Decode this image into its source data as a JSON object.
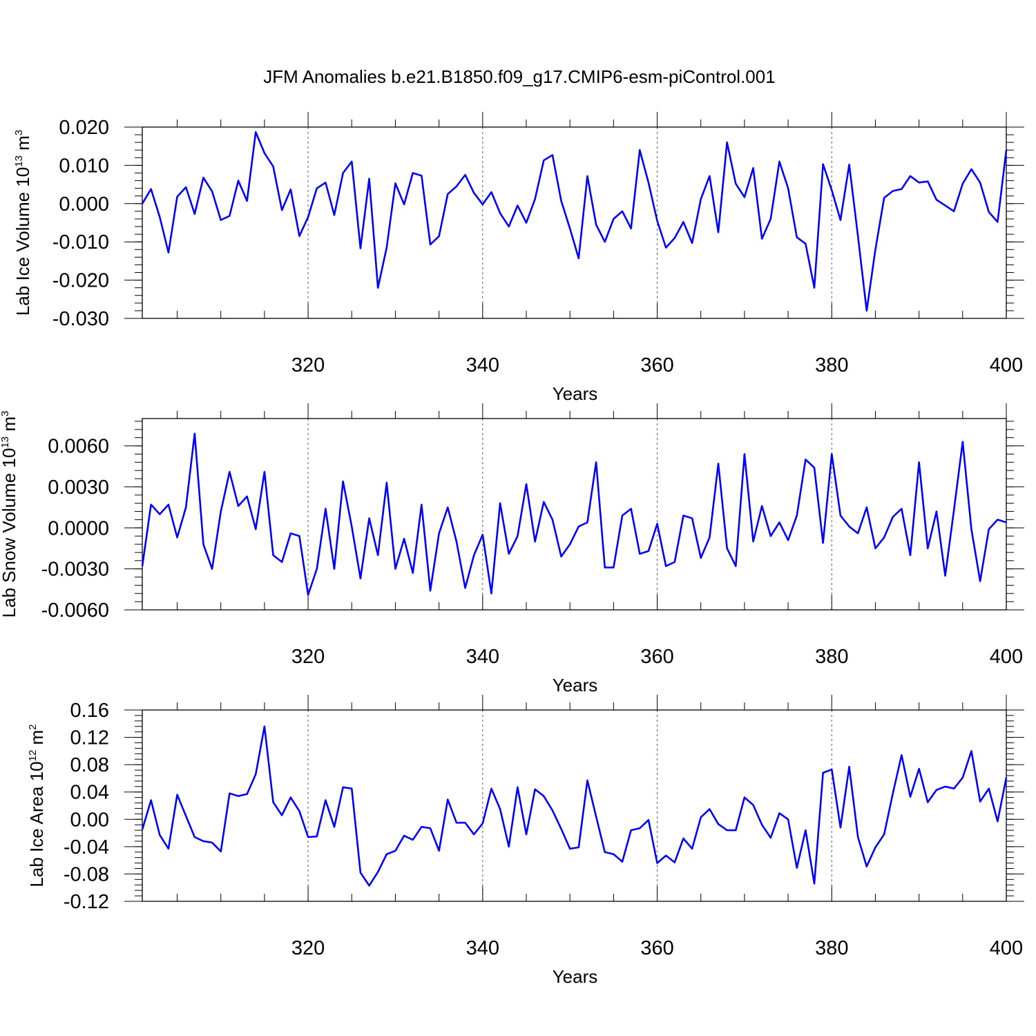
{
  "chart_data": {
    "title": "JFM Anomalies b.e21.B1850.f09_g17.CMIP6-esm-piControl.001",
    "type": "line",
    "series_color": "#0000ff",
    "panels": [
      {
        "type": "line",
        "ylabel_main": "Lab Ice Volume 10",
        "ylabel_exp": "13",
        "ylabel_unit": " m",
        "ylabel_unit_exp": "3",
        "xlabel": "Years",
        "xlim": [
          301,
          400
        ],
        "ylim": [
          -0.03,
          0.02
        ],
        "yticks": [
          0.02,
          0.01,
          0.0,
          -0.01,
          -0.02,
          -0.03
        ],
        "ytick_labels": [
          "0.020",
          "0.010",
          "0.000",
          "-0.010",
          "-0.020",
          "-0.030"
        ],
        "yminor": 0.002,
        "xticks": [
          320,
          340,
          360,
          380,
          400
        ],
        "xtick_labels": [
          "320",
          "340",
          "360",
          "380",
          "400"
        ],
        "grid_x": [
          320,
          340,
          360,
          380
        ],
        "x_start": 301,
        "values": [
          0.0,
          0.0038,
          -0.0035,
          -0.0128,
          0.0018,
          0.0043,
          -0.0027,
          0.0068,
          0.0032,
          -0.0043,
          -0.0032,
          0.006,
          0.0007,
          0.0187,
          0.0132,
          0.0097,
          -0.0017,
          0.0037,
          -0.0085,
          -0.0035,
          0.004,
          0.0055,
          -0.003,
          0.008,
          0.011,
          -0.0117,
          0.0065,
          -0.022,
          -0.0115,
          0.0053,
          -0.0002,
          0.008,
          0.0073,
          -0.0107,
          -0.0085,
          0.0025,
          0.0045,
          0.0075,
          0.0028,
          -0.0002,
          0.003,
          -0.0025,
          -0.006,
          -0.0005,
          -0.005,
          0.0012,
          0.0113,
          0.0127,
          0.0007,
          -0.0065,
          -0.0143,
          0.0072,
          -0.0055,
          -0.01,
          -0.004,
          -0.002,
          -0.0065,
          0.014,
          0.0055,
          -0.0045,
          -0.0115,
          -0.009,
          -0.0048,
          -0.0103,
          0.0012,
          0.0072,
          -0.0075,
          0.016,
          0.0052,
          0.0017,
          0.0093,
          -0.0092,
          -0.004,
          0.011,
          0.004,
          -0.0088,
          -0.0105,
          -0.022,
          0.0103,
          0.0035,
          -0.0043,
          0.0102,
          -0.0085,
          -0.028,
          -0.012,
          0.0015,
          0.0033,
          0.0038,
          0.0072,
          0.0055,
          0.0058,
          0.001,
          -0.0005,
          -0.002,
          0.0052,
          0.009,
          0.0055,
          -0.0022,
          -0.0048,
          0.014
        ]
      },
      {
        "type": "line",
        "ylabel_main": "Lab Snow Volume 10",
        "ylabel_exp": "13",
        "ylabel_unit": " m",
        "ylabel_unit_exp": "3",
        "xlabel": "Years",
        "xlim": [
          301,
          400
        ],
        "ylim": [
          -0.006,
          0.008
        ],
        "yticks": [
          0.006,
          0.003,
          0.0,
          -0.003,
          -0.006
        ],
        "ytick_labels": [
          "0.0060",
          "0.0030",
          "0.0000",
          "-0.0030",
          "-0.0060"
        ],
        "yminor": 0.0006,
        "xticks": [
          320,
          340,
          360,
          380,
          400
        ],
        "xtick_labels": [
          "320",
          "340",
          "360",
          "380",
          "400"
        ],
        "grid_x": [
          320,
          340,
          360,
          380
        ],
        "x_start": 301,
        "values": [
          -0.0028,
          0.0017,
          0.001,
          0.0017,
          -0.0007,
          0.0015,
          0.0069,
          -0.0012,
          -0.003,
          0.0012,
          0.0041,
          0.0016,
          0.0023,
          -0.0001,
          0.0041,
          -0.002,
          -0.0025,
          -0.0004,
          -0.0006,
          -0.0049,
          -0.003,
          0.0014,
          -0.003,
          0.0034,
          0.0001,
          -0.0037,
          0.0007,
          -0.002,
          0.0033,
          -0.003,
          -0.0008,
          -0.0033,
          0.0017,
          -0.0046,
          -0.0004,
          0.0015,
          -0.001,
          -0.0044,
          -0.002,
          -0.0005,
          -0.0048,
          0.0018,
          -0.0019,
          -0.0006,
          0.0032,
          -0.001,
          0.0019,
          0.0006,
          -0.0021,
          -0.0012,
          0.0001,
          0.0004,
          0.0048,
          -0.0029,
          -0.0029,
          0.0009,
          0.0014,
          -0.0019,
          -0.0017,
          0.0003,
          -0.0028,
          -0.0025,
          0.0009,
          0.0007,
          -0.0022,
          -0.0007,
          0.0047,
          -0.0015,
          -0.0028,
          0.0054,
          -0.001,
          0.0016,
          -0.0006,
          0.0004,
          -0.0009,
          0.0009,
          0.005,
          0.0044,
          -0.0011,
          0.0054,
          0.0009,
          0.0001,
          -0.0004,
          0.0015,
          -0.0015,
          -0.0007,
          0.0008,
          0.0014,
          -0.002,
          0.0048,
          -0.0015,
          0.0012,
          -0.0035,
          0.0013,
          0.0063,
          -0.0001,
          -0.0039,
          -0.0001,
          0.0006,
          0.0004
        ]
      },
      {
        "type": "line",
        "ylabel_main": "Lab Ice Area 10",
        "ylabel_exp": "12",
        "ylabel_unit": " m",
        "ylabel_unit_exp": "2",
        "xlabel": "Years",
        "xlim": [
          301,
          400
        ],
        "ylim": [
          -0.12,
          0.16
        ],
        "yticks": [
          0.16,
          0.12,
          0.08,
          0.04,
          0.0,
          -0.04,
          -0.08,
          -0.12
        ],
        "ytick_labels": [
          "0.16",
          "0.12",
          "0.08",
          "0.04",
          "0.00",
          "-0.04",
          "-0.08",
          "-0.12"
        ],
        "yminor": 0.008,
        "xticks": [
          320,
          340,
          360,
          380,
          400
        ],
        "xtick_labels": [
          "320",
          "340",
          "360",
          "380",
          "400"
        ],
        "grid_x": [
          320,
          340,
          360,
          380
        ],
        "x_start": 301,
        "values": [
          -0.015,
          0.028,
          -0.023,
          -0.043,
          0.036,
          0.005,
          -0.026,
          -0.032,
          -0.034,
          -0.047,
          0.038,
          0.034,
          0.037,
          0.066,
          0.136,
          0.025,
          0.006,
          0.032,
          0.012,
          -0.026,
          -0.025,
          0.028,
          -0.011,
          0.047,
          0.045,
          -0.078,
          -0.097,
          -0.077,
          -0.051,
          -0.046,
          -0.024,
          -0.03,
          -0.011,
          -0.013,
          -0.046,
          0.029,
          -0.005,
          -0.005,
          -0.022,
          -0.006,
          0.045,
          0.015,
          -0.04,
          0.047,
          -0.022,
          0.044,
          0.034,
          0.013,
          -0.014,
          -0.043,
          -0.041,
          0.057,
          0.004,
          -0.048,
          -0.051,
          -0.062,
          -0.016,
          -0.013,
          -0.001,
          -0.064,
          -0.053,
          -0.063,
          -0.028,
          -0.043,
          0.003,
          0.015,
          -0.007,
          -0.016,
          -0.016,
          0.032,
          0.021,
          -0.008,
          -0.027,
          0.009,
          0.0,
          -0.071,
          -0.016,
          -0.094,
          0.068,
          0.073,
          -0.012,
          0.077,
          -0.026,
          -0.069,
          -0.041,
          -0.022,
          0.038,
          0.094,
          0.033,
          0.074,
          0.025,
          0.043,
          0.048,
          0.045,
          0.061,
          0.1,
          0.026,
          0.045,
          -0.003,
          0.061
        ]
      }
    ]
  }
}
